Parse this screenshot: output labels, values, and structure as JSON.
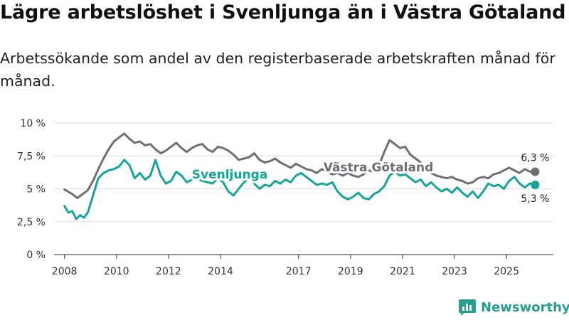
{
  "title": "Lägre arbetslöshet i Svenljunga än i Västra Götaland",
  "subtitle": "Arbetssökande som andel av den registerbaserade arbetskraften månad för månad.",
  "brand": {
    "name": "Newsworthy",
    "logo_icon": "bar-chart-logo-icon"
  },
  "colors": {
    "svenljunga": "#18a396",
    "vastra": "#6f6e74",
    "grid": "#dddddd",
    "axis": "#555555"
  },
  "chart_data": {
    "type": "line",
    "title": "Lägre arbetslöshet i Svenljunga än i Västra Götaland",
    "ylabel": "",
    "xlabel": "",
    "ylim": [
      0,
      10
    ],
    "xlim": [
      2007.6,
      2026.8
    ],
    "y_ticks": [
      0,
      2.5,
      5,
      7.5,
      10
    ],
    "y_tick_labels": [
      "0 %",
      "2,5 %",
      "5 %",
      "7,5 %",
      "10 %"
    ],
    "x_ticks": [
      2008,
      2010,
      2012,
      2014,
      2017,
      2019,
      2021,
      2023,
      2025
    ],
    "x_tick_labels": [
      "2008",
      "2010",
      "2012",
      "2014",
      "2017",
      "2019",
      "2021",
      "2023",
      "2025"
    ],
    "grid": true,
    "series": [
      {
        "name": "Västra Götaland",
        "label_text": "Västra Götaland",
        "end_label": "6,3 %",
        "color": "#6f6e74",
        "points": [
          [
            2008,
            4.95
          ],
          [
            2008.3,
            4.6
          ],
          [
            2008.5,
            4.3
          ],
          [
            2008.7,
            4.6
          ],
          [
            2008.9,
            4.9
          ],
          [
            2009.1,
            5.6
          ],
          [
            2009.3,
            6.5
          ],
          [
            2009.5,
            7.3
          ],
          [
            2009.7,
            8.0
          ],
          [
            2009.9,
            8.6
          ],
          [
            2010.1,
            8.9
          ],
          [
            2010.3,
            9.2
          ],
          [
            2010.5,
            8.8
          ],
          [
            2010.7,
            8.5
          ],
          [
            2010.9,
            8.6
          ],
          [
            2011.1,
            8.3
          ],
          [
            2011.3,
            8.4
          ],
          [
            2011.5,
            8.0
          ],
          [
            2011.7,
            7.7
          ],
          [
            2011.9,
            7.9
          ],
          [
            2012.1,
            8.2
          ],
          [
            2012.3,
            8.5
          ],
          [
            2012.5,
            8.1
          ],
          [
            2012.7,
            7.8
          ],
          [
            2012.9,
            8.1
          ],
          [
            2013.1,
            8.3
          ],
          [
            2013.3,
            8.4
          ],
          [
            2013.5,
            8.0
          ],
          [
            2013.7,
            7.8
          ],
          [
            2013.9,
            8.2
          ],
          [
            2014.1,
            8.1
          ],
          [
            2014.3,
            7.9
          ],
          [
            2014.5,
            7.6
          ],
          [
            2014.7,
            7.2
          ],
          [
            2014.9,
            7.3
          ],
          [
            2015.1,
            7.4
          ],
          [
            2015.3,
            7.7
          ],
          [
            2015.5,
            7.2
          ],
          [
            2015.7,
            7.0
          ],
          [
            2015.9,
            7.1
          ],
          [
            2016.1,
            7.3
          ],
          [
            2016.3,
            7.0
          ],
          [
            2016.5,
            6.8
          ],
          [
            2016.7,
            6.6
          ],
          [
            2016.9,
            6.9
          ],
          [
            2017.1,
            6.7
          ],
          [
            2017.3,
            6.5
          ],
          [
            2017.5,
            6.4
          ],
          [
            2017.7,
            6.2
          ],
          [
            2017.9,
            6.5
          ],
          [
            2018.1,
            6.3
          ],
          [
            2018.3,
            6.1
          ],
          [
            2018.5,
            6.2
          ],
          [
            2018.7,
            6.0
          ],
          [
            2018.9,
            6.2
          ],
          [
            2019.1,
            6.0
          ],
          [
            2019.3,
            5.9
          ],
          [
            2019.5,
            6.1
          ],
          [
            2019.7,
            6.4
          ],
          [
            2019.9,
            6.3
          ],
          [
            2020.1,
            6.8
          ],
          [
            2020.3,
            7.8
          ],
          [
            2020.5,
            8.7
          ],
          [
            2020.7,
            8.4
          ],
          [
            2020.9,
            8.1
          ],
          [
            2021.1,
            8.2
          ],
          [
            2021.3,
            7.6
          ],
          [
            2021.5,
            7.3
          ],
          [
            2021.7,
            7.0
          ],
          [
            2021.9,
            6.6
          ],
          [
            2022.1,
            6.2
          ],
          [
            2022.3,
            6.0
          ],
          [
            2022.5,
            5.9
          ],
          [
            2022.7,
            5.8
          ],
          [
            2022.9,
            5.9
          ],
          [
            2023.1,
            5.7
          ],
          [
            2023.3,
            5.6
          ],
          [
            2023.5,
            5.4
          ],
          [
            2023.7,
            5.5
          ],
          [
            2023.9,
            5.8
          ],
          [
            2024.1,
            5.9
          ],
          [
            2024.3,
            5.8
          ],
          [
            2024.5,
            6.1
          ],
          [
            2024.7,
            6.2
          ],
          [
            2024.9,
            6.4
          ],
          [
            2025.1,
            6.6
          ],
          [
            2025.3,
            6.4
          ],
          [
            2025.5,
            6.2
          ],
          [
            2025.7,
            6.5
          ],
          [
            2025.9,
            6.3
          ],
          [
            2026.1,
            6.3
          ]
        ]
      },
      {
        "name": "Svenljunga",
        "label_text": "Svenljunga",
        "end_label": "5,3 %",
        "color": "#18a396",
        "points": [
          [
            2008,
            3.7
          ],
          [
            2008.15,
            3.2
          ],
          [
            2008.3,
            3.3
          ],
          [
            2008.45,
            2.7
          ],
          [
            2008.6,
            3.0
          ],
          [
            2008.75,
            2.8
          ],
          [
            2008.9,
            3.2
          ],
          [
            2009.1,
            4.5
          ],
          [
            2009.3,
            5.8
          ],
          [
            2009.5,
            6.2
          ],
          [
            2009.7,
            6.4
          ],
          [
            2009.9,
            6.5
          ],
          [
            2010.1,
            6.7
          ],
          [
            2010.3,
            7.2
          ],
          [
            2010.5,
            6.8
          ],
          [
            2010.7,
            5.8
          ],
          [
            2010.9,
            6.2
          ],
          [
            2011.1,
            5.7
          ],
          [
            2011.3,
            6.0
          ],
          [
            2011.5,
            7.2
          ],
          [
            2011.7,
            6.0
          ],
          [
            2011.9,
            5.4
          ],
          [
            2012.1,
            5.6
          ],
          [
            2012.3,
            6.3
          ],
          [
            2012.5,
            6.0
          ],
          [
            2012.7,
            5.5
          ],
          [
            2012.9,
            5.7
          ],
          [
            2013.1,
            5.8
          ],
          [
            2013.3,
            5.6
          ],
          [
            2013.5,
            5.5
          ],
          [
            2013.7,
            5.4
          ],
          [
            2013.9,
            5.8
          ],
          [
            2014.1,
            5.5
          ],
          [
            2014.3,
            4.8
          ],
          [
            2014.5,
            4.5
          ],
          [
            2014.7,
            5.0
          ],
          [
            2014.9,
            5.5
          ],
          [
            2015.1,
            5.8
          ],
          [
            2015.3,
            5.4
          ],
          [
            2015.5,
            5.0
          ],
          [
            2015.7,
            5.3
          ],
          [
            2015.9,
            5.2
          ],
          [
            2016.1,
            5.6
          ],
          [
            2016.3,
            5.4
          ],
          [
            2016.5,
            5.7
          ],
          [
            2016.7,
            5.5
          ],
          [
            2016.9,
            6.0
          ],
          [
            2017.1,
            6.2
          ],
          [
            2017.3,
            5.9
          ],
          [
            2017.5,
            5.6
          ],
          [
            2017.7,
            5.3
          ],
          [
            2017.9,
            5.4
          ],
          [
            2018.1,
            5.3
          ],
          [
            2018.3,
            5.5
          ],
          [
            2018.5,
            4.8
          ],
          [
            2018.7,
            4.4
          ],
          [
            2018.9,
            4.2
          ],
          [
            2019.1,
            4.4
          ],
          [
            2019.3,
            4.7
          ],
          [
            2019.5,
            4.3
          ],
          [
            2019.7,
            4.2
          ],
          [
            2019.9,
            4.6
          ],
          [
            2020.1,
            4.8
          ],
          [
            2020.3,
            5.2
          ],
          [
            2020.5,
            6.0
          ],
          [
            2020.7,
            6.3
          ],
          [
            2020.9,
            6.0
          ],
          [
            2021.1,
            6.1
          ],
          [
            2021.3,
            5.8
          ],
          [
            2021.5,
            5.5
          ],
          [
            2021.7,
            5.7
          ],
          [
            2021.9,
            5.2
          ],
          [
            2022.1,
            5.5
          ],
          [
            2022.3,
            5.1
          ],
          [
            2022.5,
            4.8
          ],
          [
            2022.7,
            5.0
          ],
          [
            2022.9,
            4.7
          ],
          [
            2023.1,
            5.1
          ],
          [
            2023.3,
            4.7
          ],
          [
            2023.5,
            4.4
          ],
          [
            2023.7,
            4.8
          ],
          [
            2023.9,
            4.3
          ],
          [
            2024.1,
            4.8
          ],
          [
            2024.3,
            5.4
          ],
          [
            2024.5,
            5.2
          ],
          [
            2024.7,
            5.3
          ],
          [
            2024.9,
            5.0
          ],
          [
            2025.1,
            5.6
          ],
          [
            2025.3,
            5.9
          ],
          [
            2025.5,
            5.4
          ],
          [
            2025.7,
            5.1
          ],
          [
            2025.9,
            5.4
          ],
          [
            2026.1,
            5.3
          ]
        ]
      }
    ]
  }
}
